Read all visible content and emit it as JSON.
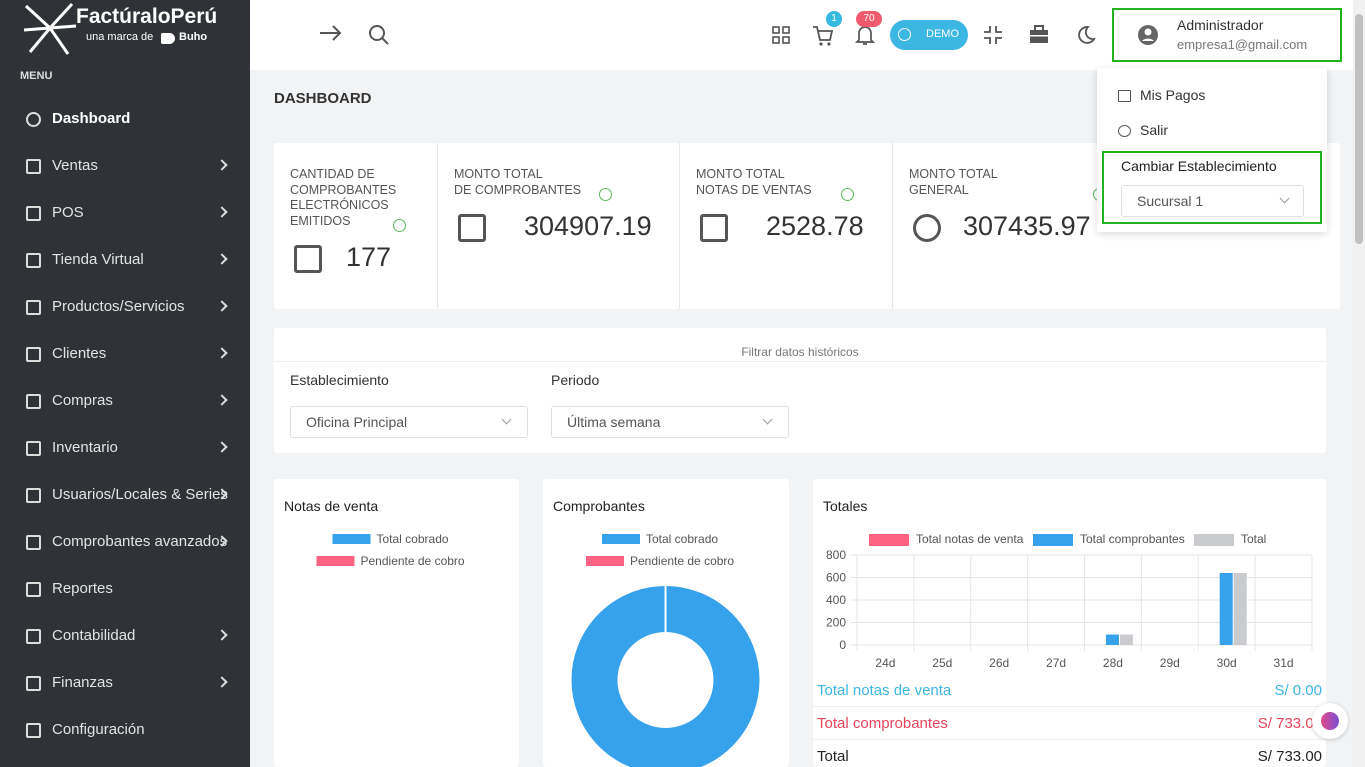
{
  "sidebar": {
    "brand": "FactúraloPerú",
    "tagline": "una marca de",
    "partner": "Buho",
    "menu_title": "MENU",
    "items": [
      "Dashboard",
      "Ventas",
      "POS",
      "Tienda Virtual",
      "Productos/Servicios",
      "Clientes",
      "Compras",
      "Inventario",
      "Usuarios/Locales & Series",
      "Comprobantes avanzados",
      "Reportes",
      "Contabilidad",
      "Finanzas",
      "Configuración"
    ]
  },
  "topbar": {
    "cart_count": "1",
    "notifications_count": "70",
    "mode": "DEMO",
    "user_name": "Administrador",
    "user_email": "empresa1@gmail.com"
  },
  "user_menu": {
    "items": [
      "Mis Pagos",
      "Salir"
    ],
    "establishment_title": "Cambiar Establecimiento",
    "establishment": "Sucursal 1"
  },
  "page_title": "DASHBOARD",
  "stats": [
    {
      "label": [
        "CANTIDAD DE",
        "COMPROBANTES",
        "ELECTRÓNICOS",
        "EMITIDOS"
      ],
      "value": "177"
    },
    {
      "label": [
        "MONTO TOTAL",
        "DE COMPROBANTES"
      ],
      "value": "304907.19"
    },
    {
      "label": [
        "MONTO TOTAL",
        "NOTAS DE VENTAS"
      ],
      "value": "2528.78"
    },
    {
      "label": [
        "MONTO TOTAL",
        "GENERAL"
      ],
      "value": "307435.97"
    }
  ],
  "filter": {
    "title": "Filtrar datos históricos",
    "establishment_label": "Establecimiento",
    "establishment": "Oficina Principal",
    "period_label": "Periodo",
    "period": "Última semana"
  },
  "chart_data": [
    {
      "type": "doughnut",
      "title": "Notas de venta",
      "categories": [
        "Total cobrado",
        "Pendiente de cobro"
      ],
      "colors": [
        "#36a2eb",
        "#ff6384"
      ],
      "values": [
        0,
        0
      ]
    },
    {
      "type": "doughnut",
      "title": "Comprobantes",
      "categories": [
        "Total cobrado",
        "Pendiente de cobro"
      ],
      "colors": [
        "#36a2eb",
        "#ff6384"
      ],
      "values": [
        100,
        0
      ]
    },
    {
      "type": "bar",
      "title": "Totales",
      "categories": [
        "24d",
        "25d",
        "26d",
        "27d",
        "28d",
        "29d",
        "30d",
        "31d"
      ],
      "series": [
        {
          "name": "Total notas de venta",
          "color": "#ff6384",
          "values": [
            0,
            0,
            0,
            0,
            0,
            0,
            0,
            0
          ]
        },
        {
          "name": "Total comprobantes",
          "color": "#36a2eb",
          "values": [
            0,
            0,
            0,
            0,
            93,
            0,
            640,
            0
          ]
        },
        {
          "name": "Total",
          "color": "#c9cbcf",
          "values": [
            0,
            0,
            0,
            0,
            93,
            0,
            640,
            0
          ]
        }
      ],
      "ylim": [
        0,
        800
      ],
      "yticks": [
        0,
        200,
        400,
        600,
        800
      ],
      "grid": true
    }
  ],
  "totals": [
    {
      "label": "Total notas de venta",
      "value": "S/ 0.00"
    },
    {
      "label": "Total comprobantes",
      "value": "S/ 733.00"
    },
    {
      "label": "Total",
      "value": "S/ 733.00"
    }
  ]
}
